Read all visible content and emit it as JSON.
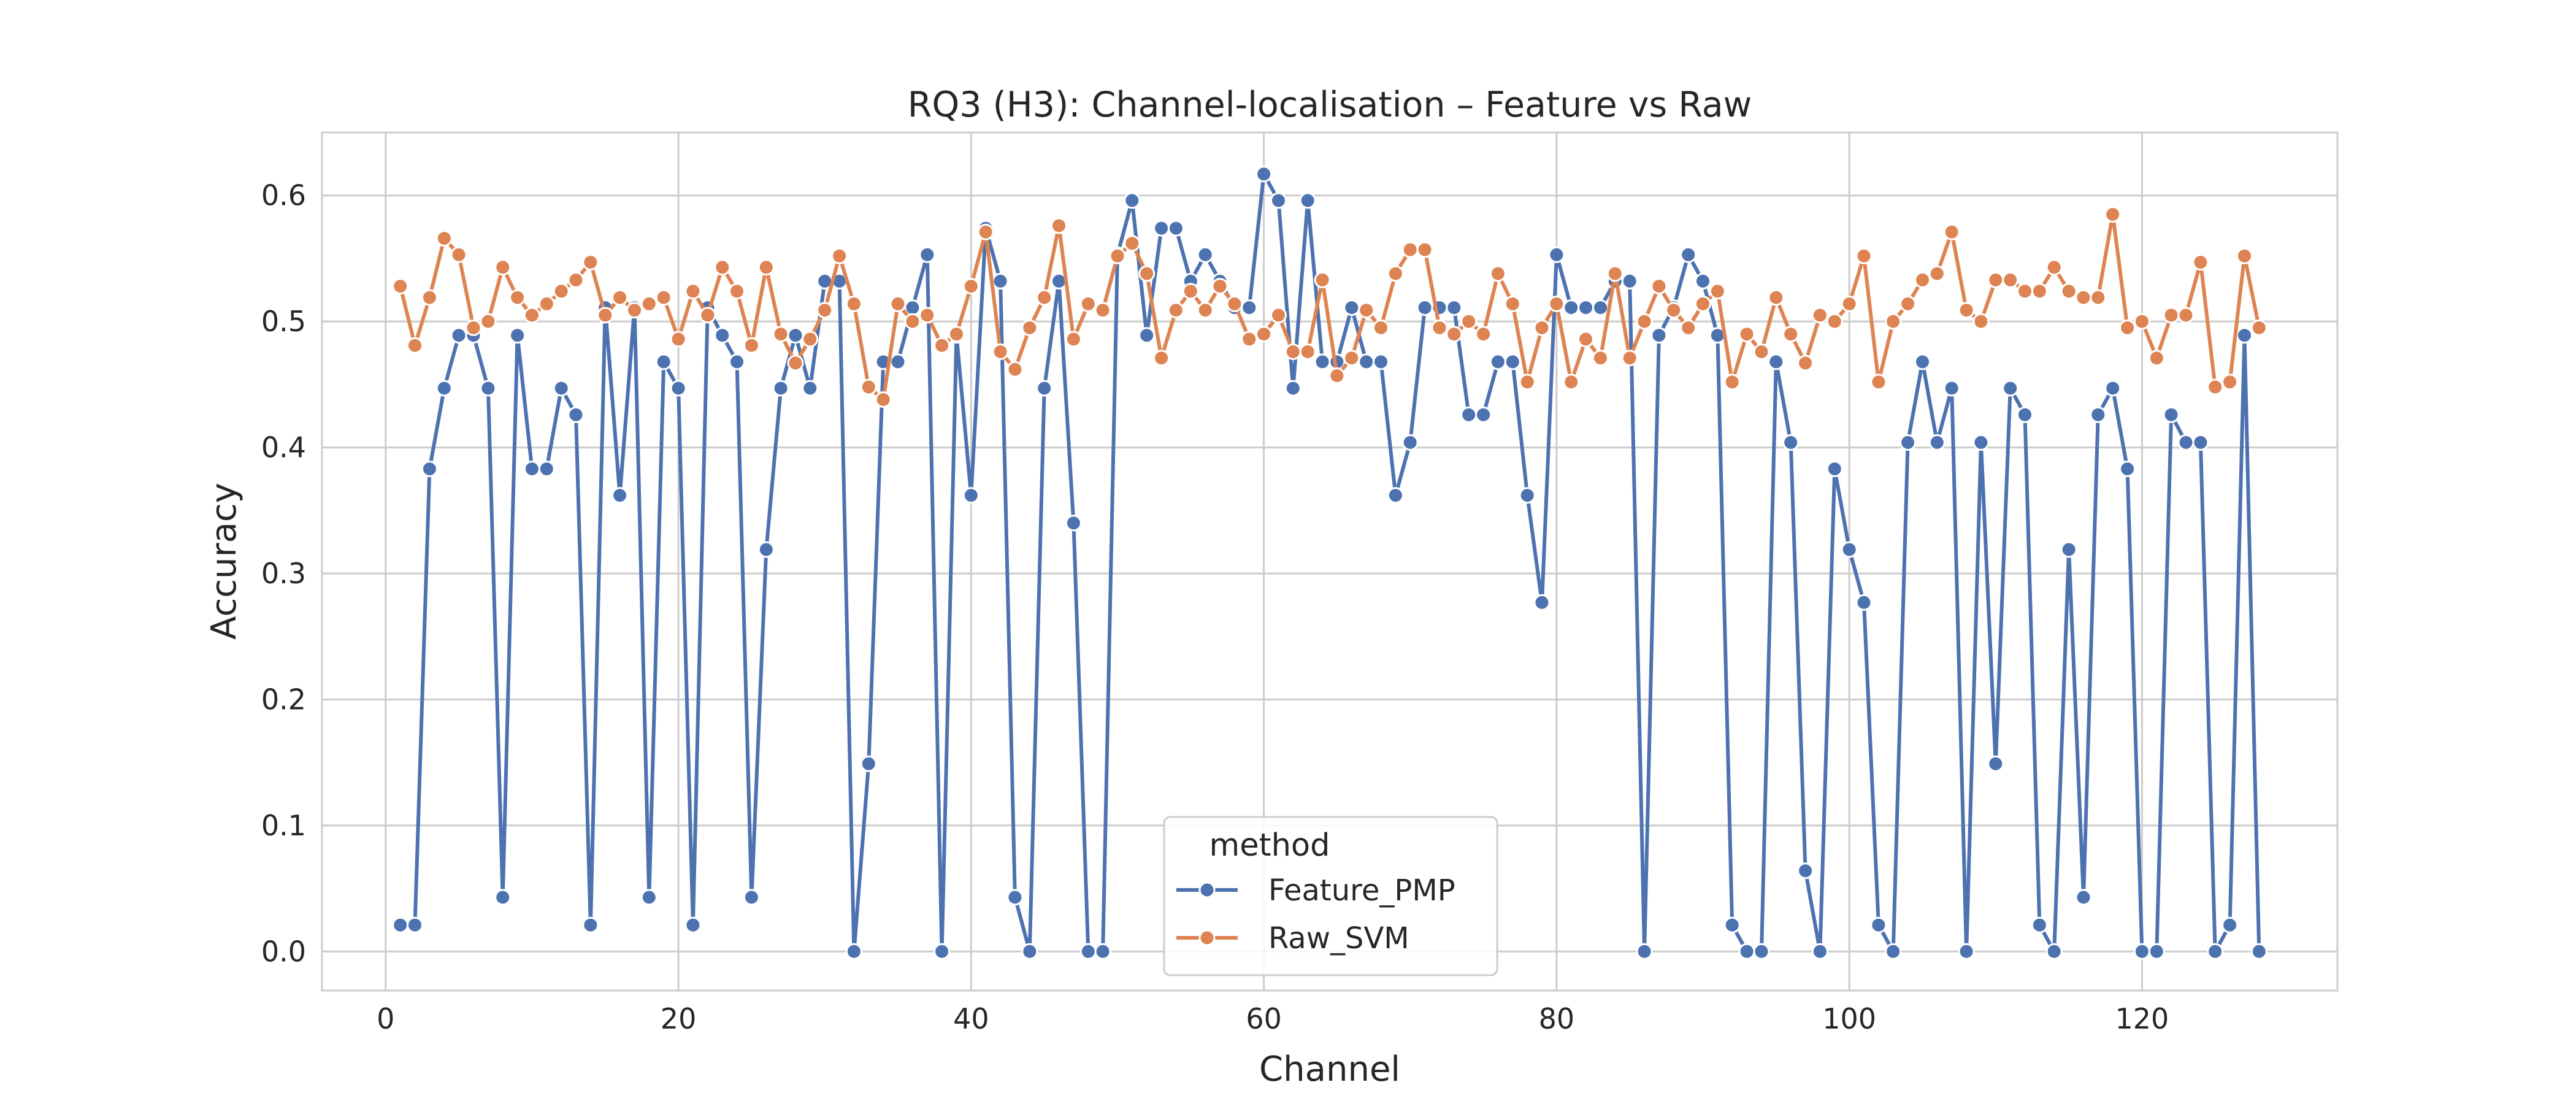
{
  "chart_data": {
    "type": "line",
    "title": "RQ3 (H3): Channel-localisation – Feature vs Raw",
    "xlabel": "Channel",
    "ylabel": "Accuracy",
    "xlim": [
      -4.35,
      133.35
    ],
    "ylim": [
      -0.031,
      0.65
    ],
    "x_ticks": [
      0,
      20,
      40,
      60,
      80,
      100,
      120
    ],
    "x_tick_labels": [
      "0",
      "20",
      "40",
      "60",
      "80",
      "100",
      "120"
    ],
    "y_ticks": [
      0.0,
      0.1,
      0.2,
      0.3,
      0.4,
      0.5,
      0.6
    ],
    "y_tick_labels": [
      "0.0",
      "0.1",
      "0.2",
      "0.3",
      "0.4",
      "0.5",
      "0.6"
    ],
    "grid": true,
    "legend": {
      "title": "method",
      "placement": "lower-center"
    },
    "x": [
      1,
      2,
      3,
      4,
      5,
      6,
      7,
      8,
      9,
      10,
      11,
      12,
      13,
      14,
      15,
      16,
      17,
      18,
      19,
      20,
      21,
      22,
      23,
      24,
      25,
      26,
      27,
      28,
      29,
      30,
      31,
      32,
      33,
      34,
      35,
      36,
      37,
      38,
      39,
      40,
      41,
      42,
      43,
      44,
      45,
      46,
      47,
      48,
      49,
      50,
      51,
      52,
      53,
      54,
      55,
      56,
      57,
      58,
      59,
      60,
      61,
      62,
      63,
      64,
      65,
      66,
      67,
      68,
      69,
      70,
      71,
      72,
      73,
      74,
      75,
      76,
      77,
      78,
      79,
      80,
      81,
      82,
      83,
      84,
      85,
      86,
      87,
      88,
      89,
      90,
      91,
      92,
      93,
      94,
      95,
      96,
      97,
      98,
      99,
      100,
      101,
      102,
      103,
      104,
      105,
      106,
      107,
      108,
      109,
      110,
      111,
      112,
      113,
      114,
      115,
      116,
      117,
      118,
      119,
      120,
      121,
      122,
      123,
      124,
      125,
      126,
      127,
      128
    ],
    "series": [
      {
        "name": "Feature_PMP",
        "color": "#4c72b0",
        "values": [
          0.021,
          0.021,
          0.383,
          0.447,
          0.489,
          0.489,
          0.447,
          0.043,
          0.489,
          0.383,
          0.383,
          0.447,
          0.426,
          0.021,
          0.511,
          0.362,
          0.511,
          0.043,
          0.468,
          0.447,
          0.021,
          0.511,
          0.489,
          0.468,
          0.043,
          0.319,
          0.447,
          0.489,
          0.447,
          0.532,
          0.532,
          0.0,
          0.149,
          0.468,
          0.468,
          0.511,
          0.553,
          0.0,
          0.489,
          0.362,
          0.574,
          0.532,
          0.043,
          0.0,
          0.447,
          0.532,
          0.34,
          0.0,
          0.0,
          0.553,
          0.596,
          0.489,
          0.574,
          0.574,
          0.532,
          0.553,
          0.532,
          0.511,
          0.511,
          0.617,
          0.596,
          0.447,
          0.596,
          0.468,
          0.468,
          0.511,
          0.468,
          0.468,
          0.362,
          0.404,
          0.511,
          0.511,
          0.511,
          0.426,
          0.426,
          0.468,
          0.468,
          0.362,
          0.277,
          0.553,
          0.511,
          0.511,
          0.511,
          0.532,
          0.532,
          0.0,
          0.489,
          0.511,
          0.553,
          0.532,
          0.489,
          0.021,
          0.0,
          0.0,
          0.468,
          0.404,
          0.064,
          0.0,
          0.383,
          0.319,
          0.277,
          0.021,
          0.0,
          0.404,
          0.468,
          0.404,
          0.447,
          0.0,
          0.404,
          0.149,
          0.447,
          0.426,
          0.021,
          0.0,
          0.319,
          0.043,
          0.426,
          0.447,
          0.383,
          0.0,
          0.0,
          0.426,
          0.404,
          0.404,
          0.0,
          0.021,
          0.489,
          0.0
        ]
      },
      {
        "name": "Raw_SVM",
        "color": "#dd8452",
        "values": [
          0.528,
          0.481,
          0.519,
          0.566,
          0.553,
          0.495,
          0.5,
          0.543,
          0.519,
          0.505,
          0.514,
          0.524,
          0.533,
          0.547,
          0.505,
          0.519,
          0.509,
          0.514,
          0.519,
          0.486,
          0.524,
          0.505,
          0.543,
          0.524,
          0.481,
          0.543,
          0.49,
          0.467,
          0.486,
          0.509,
          0.552,
          0.514,
          0.448,
          0.438,
          0.514,
          0.5,
          0.505,
          0.481,
          0.49,
          0.528,
          0.571,
          0.476,
          0.462,
          0.495,
          0.519,
          0.576,
          0.486,
          0.514,
          0.509,
          0.552,
          0.562,
          0.538,
          0.471,
          0.509,
          0.524,
          0.509,
          0.528,
          0.514,
          0.486,
          0.49,
          0.505,
          0.476,
          0.476,
          0.533,
          0.457,
          0.471,
          0.509,
          0.495,
          0.538,
          0.557,
          0.557,
          0.495,
          0.49,
          0.5,
          0.49,
          0.538,
          0.514,
          0.452,
          0.495,
          0.514,
          0.452,
          0.486,
          0.471,
          0.538,
          0.471,
          0.5,
          0.528,
          0.509,
          0.495,
          0.514,
          0.524,
          0.452,
          0.49,
          0.476,
          0.519,
          0.49,
          0.467,
          0.505,
          0.5,
          0.514,
          0.552,
          0.452,
          0.5,
          0.514,
          0.533,
          0.538,
          0.571,
          0.509,
          0.5,
          0.533,
          0.533,
          0.524,
          0.524,
          0.543,
          0.524,
          0.519,
          0.519,
          0.585,
          0.495,
          0.5,
          0.471,
          0.505,
          0.505,
          0.547,
          0.448,
          0.452,
          0.552,
          0.495
        ]
      }
    ]
  }
}
